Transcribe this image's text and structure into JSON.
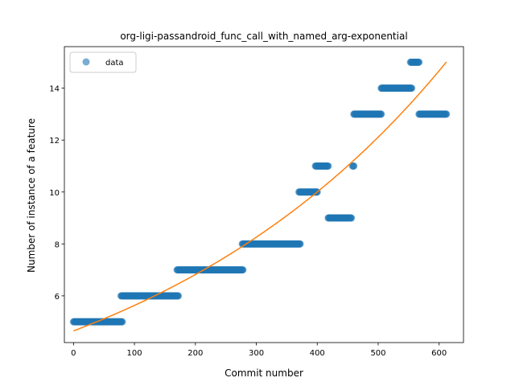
{
  "chart_data": {
    "type": "scatter",
    "title": "org-ligi-passandroid_func_call_with_named_arg-exponential",
    "xlabel": "Commit number",
    "ylabel": "Number of instance of a feature",
    "xlim": [
      -15,
      640
    ],
    "ylim": [
      4.2,
      15.6
    ],
    "xticks": [
      0,
      100,
      200,
      300,
      400,
      500,
      600
    ],
    "yticks": [
      6,
      8,
      10,
      12,
      14
    ],
    "grid": false,
    "legend": {
      "location": "upper-left",
      "entries": [
        "data"
      ]
    },
    "colors": {
      "data": "#1f77b4",
      "fit": "#ff7f0e"
    },
    "series": [
      {
        "name": "data",
        "kind": "scatter",
        "segments": [
          {
            "x_start": 0,
            "x_end": 80,
            "y": 5
          },
          {
            "x_start": 78,
            "x_end": 172,
            "y": 6
          },
          {
            "x_start": 170,
            "x_end": 278,
            "y": 7
          },
          {
            "x_start": 277,
            "x_end": 372,
            "y": 8
          },
          {
            "x_start": 370,
            "x_end": 400,
            "y": 10
          },
          {
            "x_start": 397,
            "x_end": 418,
            "y": 11
          },
          {
            "x_start": 418,
            "x_end": 456,
            "y": 9
          },
          {
            "x_start": 458,
            "x_end": 460,
            "y": 11
          },
          {
            "x_start": 460,
            "x_end": 505,
            "y": 13
          },
          {
            "x_start": 505,
            "x_end": 555,
            "y": 14
          },
          {
            "x_start": 553,
            "x_end": 567,
            "y": 15
          },
          {
            "x_start": 567,
            "x_end": 612,
            "y": 13
          }
        ]
      },
      {
        "kind": "line",
        "model": "exponential",
        "a": 4.65,
        "b": 0.001915,
        "x_range": [
          0,
          612
        ]
      }
    ]
  }
}
